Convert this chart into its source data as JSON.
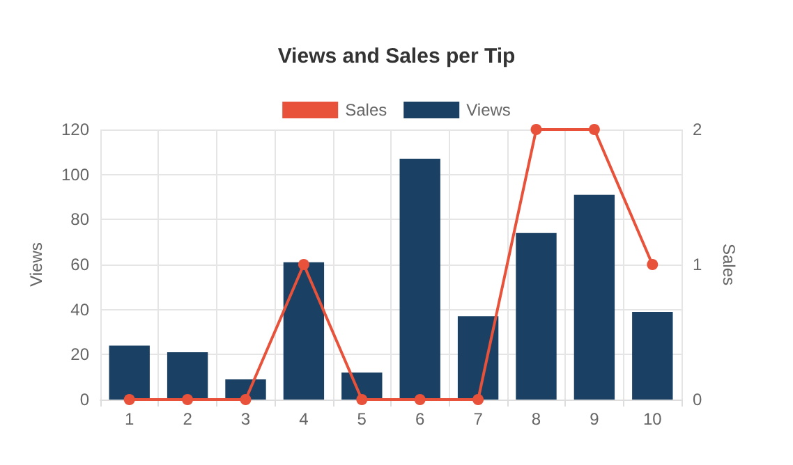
{
  "chart_data": {
    "type": "bar",
    "title": "Views and Sales per Tip",
    "categories": [
      "1",
      "2",
      "3",
      "4",
      "5",
      "6",
      "7",
      "8",
      "9",
      "10"
    ],
    "series": [
      {
        "name": "Sales",
        "type": "line",
        "axis": "y2",
        "color": "#e8513a",
        "values": [
          0,
          0,
          0,
          1,
          0,
          0,
          0,
          2,
          2,
          1
        ]
      },
      {
        "name": "Views",
        "color": "#1a4163",
        "values": [
          24,
          21,
          9,
          61,
          12,
          107,
          37,
          74,
          91,
          39
        ]
      }
    ],
    "ylabel": "Views",
    "y2label": "Sales",
    "ylim": [
      0,
      120
    ],
    "yticks": [
      0,
      20,
      40,
      60,
      80,
      100,
      120
    ],
    "y2lim": [
      0,
      2
    ],
    "y2ticks": [
      0,
      1,
      2
    ],
    "grid": true,
    "legend": "top",
    "marker": "circle",
    "line_style": "solid"
  }
}
